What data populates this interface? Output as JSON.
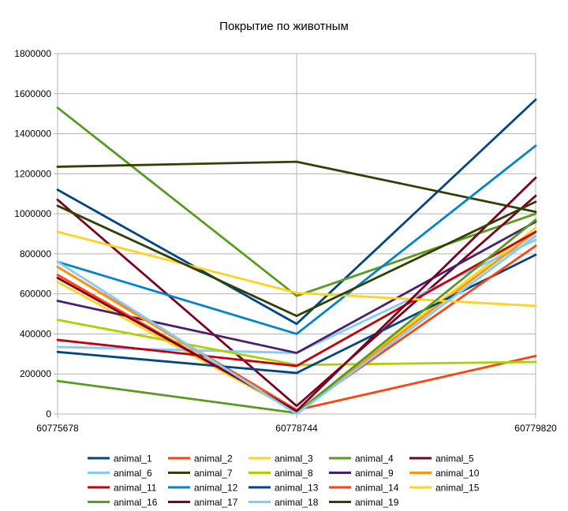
{
  "chart_data": {
    "type": "line",
    "title": "Покрытие по животным",
    "x": [
      "60775678",
      "60778744",
      "60779820"
    ],
    "y_ticks": [
      "0",
      "200000",
      "400000",
      "600000",
      "800000",
      "1000000",
      "1200000",
      "1400000",
      "1600000",
      "1800000"
    ],
    "ylim": [
      0,
      1800000
    ],
    "grid": true,
    "legend_position": "bottom",
    "series": [
      {
        "name": "animal_1",
        "color": "#004586",
        "values": [
          1120000,
          450000,
          1570000
        ]
      },
      {
        "name": "animal_2",
        "color": "#ff420e",
        "values": [
          735000,
          20000,
          290000
        ]
      },
      {
        "name": "animal_3",
        "color": "#ffd320",
        "values": [
          660000,
          10000,
          930000
        ]
      },
      {
        "name": "animal_4",
        "color": "#579d1c",
        "values": [
          1530000,
          590000,
          1000000
        ]
      },
      {
        "name": "animal_5",
        "color": "#7e0021",
        "values": [
          1070000,
          40000,
          1090000
        ]
      },
      {
        "name": "animal_6",
        "color": "#83caff",
        "values": [
          335000,
          305000,
          870000
        ]
      },
      {
        "name": "animal_7",
        "color": "#314004",
        "values": [
          1235000,
          1260000,
          1010000
        ]
      },
      {
        "name": "animal_8",
        "color": "#aecf00",
        "values": [
          470000,
          245000,
          260000
        ]
      },
      {
        "name": "animal_9",
        "color": "#4b1f6f",
        "values": [
          565000,
          305000,
          960000
        ]
      },
      {
        "name": "animal_10",
        "color": "#ff950e",
        "values": [
          735000,
          10000,
          910000
        ]
      },
      {
        "name": "animal_11",
        "color": "#c5000b",
        "values": [
          370000,
          240000,
          910000
        ]
      },
      {
        "name": "animal_12",
        "color": "#0084d1",
        "values": [
          760000,
          400000,
          1340000
        ]
      },
      {
        "name": "animal_13",
        "color": "#004586",
        "values": [
          310000,
          205000,
          795000
        ]
      },
      {
        "name": "animal_14",
        "color": "#ff420e",
        "values": [
          695000,
          10000,
          840000
        ]
      },
      {
        "name": "animal_15",
        "color": "#ffd320",
        "values": [
          910000,
          605000,
          540000
        ]
      },
      {
        "name": "animal_16",
        "color": "#579d1c",
        "values": [
          165000,
          5000,
          970000
        ]
      },
      {
        "name": "animal_17",
        "color": "#7e0021",
        "values": [
          680000,
          15000,
          1180000
        ]
      },
      {
        "name": "animal_18",
        "color": "#83caff",
        "values": [
          760000,
          0,
          890000
        ]
      },
      {
        "name": "animal_19",
        "color": "#314004",
        "values": [
          1040000,
          490000,
          1060000
        ]
      }
    ]
  }
}
